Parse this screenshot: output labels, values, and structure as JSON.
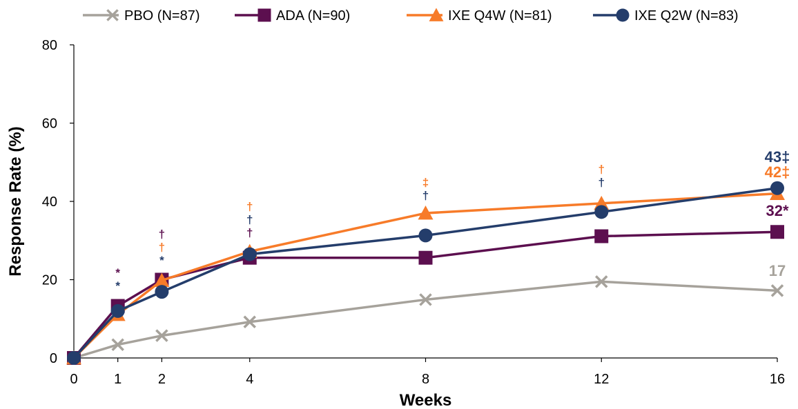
{
  "chart_data": {
    "type": "line",
    "title": "",
    "xlabel": "Weeks",
    "ylabel": "Response Rate (%)",
    "xlim": [
      0,
      16
    ],
    "ylim": [
      0,
      80
    ],
    "x_ticks": [
      0,
      1,
      2,
      4,
      8,
      12,
      16
    ],
    "y_ticks": [
      0,
      20,
      40,
      60,
      80
    ],
    "grid": false,
    "legend_position": "top",
    "series": [
      {
        "name": "PBO (N=87)",
        "color": "#a6a29b",
        "marker": "x",
        "x": [
          0,
          1,
          2,
          4,
          8,
          12,
          16
        ],
        "y": [
          0,
          3.4,
          5.7,
          9.2,
          14.9,
          19.5,
          17.2
        ],
        "end_label": "17",
        "significance": []
      },
      {
        "name": "ADA (N=90)",
        "color": "#5c0f4f",
        "marker": "square",
        "x": [
          0,
          1,
          2,
          4,
          8,
          12,
          16
        ],
        "y": [
          0,
          13.3,
          20.0,
          25.6,
          25.6,
          31.1,
          32.2
        ],
        "end_label": "32*",
        "significance": [
          {
            "x": 1,
            "mark": "*",
            "slot": 2
          },
          {
            "x": 2,
            "mark": "†",
            "slot": 3
          },
          {
            "x": 4,
            "mark": "†",
            "slot": 1
          }
        ]
      },
      {
        "name": "IXE Q4W (N=81)",
        "color": "#f77b29",
        "marker": "triangle",
        "x": [
          0,
          1,
          2,
          4,
          8,
          12,
          16
        ],
        "y": [
          0,
          11.1,
          19.8,
          27.2,
          37.0,
          39.5,
          42.0
        ],
        "end_label": "42‡",
        "significance": [
          {
            "x": 2,
            "mark": "†",
            "slot": 2
          },
          {
            "x": 4,
            "mark": "†",
            "slot": 3
          },
          {
            "x": 8,
            "mark": "‡",
            "slot": 2
          },
          {
            "x": 12,
            "mark": "†",
            "slot": 2
          }
        ]
      },
      {
        "name": "IXE Q2W (N=83)",
        "color": "#243d6b",
        "marker": "circle",
        "x": [
          0,
          1,
          2,
          4,
          8,
          12,
          16
        ],
        "y": [
          0,
          12.0,
          16.9,
          26.5,
          31.3,
          37.3,
          43.4
        ],
        "end_label": "43‡",
        "significance": [
          {
            "x": 1,
            "mark": "*",
            "slot": 1
          },
          {
            "x": 2,
            "mark": "*",
            "slot": 1
          },
          {
            "x": 4,
            "mark": "†",
            "slot": 2
          },
          {
            "x": 8,
            "mark": "†",
            "slot": 1
          },
          {
            "x": 12,
            "mark": "†",
            "slot": 1
          }
        ]
      }
    ]
  }
}
